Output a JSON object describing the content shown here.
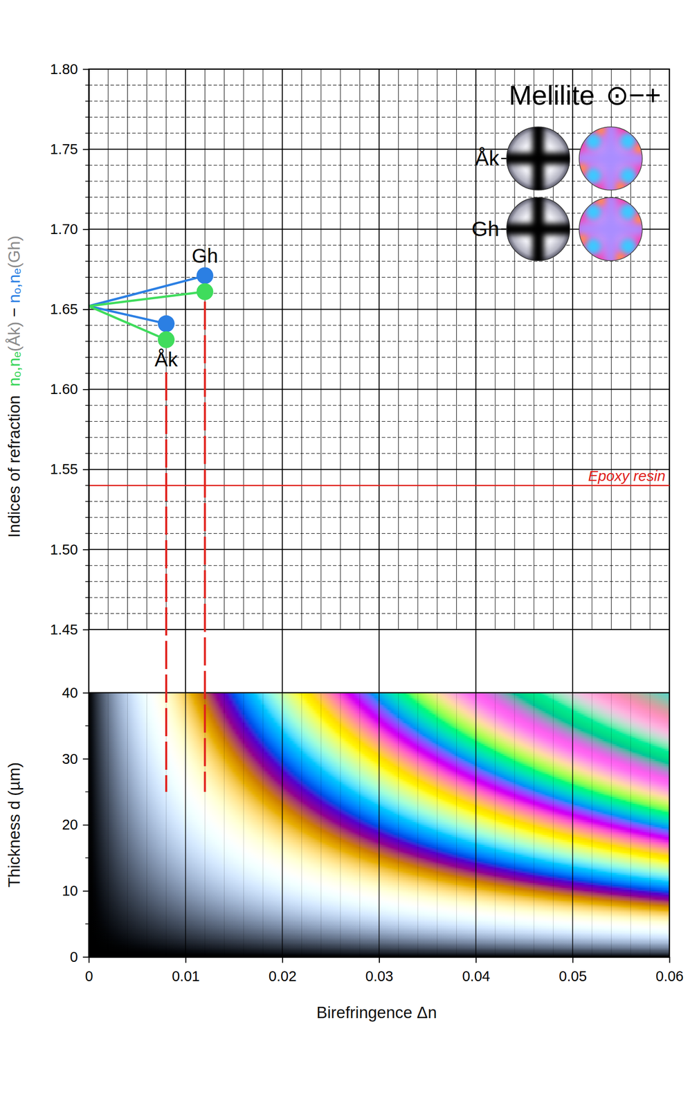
{
  "chart_data": [
    {
      "type": "scatter",
      "title": "Melilite",
      "subtitle": "⊙−+",
      "ylabel": "Indices of refraction",
      "ylabel_parts": [
        {
          "text": "nₒ,nₑ",
          "color": "#35d456"
        },
        {
          "text": "(Åk)",
          "color": "#8a8a8a"
        },
        {
          "text": " − ",
          "color": "#111111"
        },
        {
          "text": "nₒ,nₑ",
          "color": "#2b7fe3"
        },
        {
          "text": "(Gh)",
          "color": "#8a8a8a"
        }
      ],
      "xlim": [
        0,
        0.06
      ],
      "ylim": [
        1.45,
        1.8
      ],
      "xticks": [
        0,
        0.01,
        0.02,
        0.03,
        0.04,
        0.05,
        0.06
      ],
      "x_minor_ticks": [
        0.002,
        0.004,
        0.006,
        0.008,
        0.012,
        0.014,
        0.016,
        0.018,
        0.022,
        0.024,
        0.026,
        0.028,
        0.032,
        0.034,
        0.036,
        0.038,
        0.042,
        0.044,
        0.046,
        0.048,
        0.052,
        0.054,
        0.056,
        0.058
      ],
      "yticks": [
        {
          "value": 1.45,
          "label": "1.45"
        },
        {
          "value": 1.5,
          "label": "1.50"
        },
        {
          "value": 1.55,
          "label": "1.55"
        },
        {
          "value": 1.6,
          "label": "1.60"
        },
        {
          "value": 1.65,
          "label": "1.65"
        },
        {
          "value": 1.7,
          "label": "1.70"
        },
        {
          "value": 1.75,
          "label": "1.75"
        },
        {
          "value": 1.8,
          "label": "1.80"
        }
      ],
      "y_minor_ticks": [
        1.46,
        1.47,
        1.48,
        1.49,
        1.51,
        1.52,
        1.53,
        1.54,
        1.56,
        1.57,
        1.58,
        1.59,
        1.61,
        1.62,
        1.63,
        1.64,
        1.66,
        1.67,
        1.68,
        1.69,
        1.71,
        1.72,
        1.73,
        1.74,
        1.76,
        1.77,
        1.78,
        1.79
      ],
      "grid": true,
      "tick_labels": "y",
      "origin": {
        "x": 0,
        "y": 1.652
      },
      "series": [
        {
          "name": "Åk",
          "x": 0.008,
          "values": [
            1.641,
            1.631
          ],
          "colors": [
            "#2b7fe3",
            "#3fdc5c"
          ]
        },
        {
          "name": "Gh",
          "x": 0.012,
          "values": [
            1.671,
            1.661
          ],
          "colors": [
            "#2b7fe3",
            "#3fdc5c"
          ]
        }
      ],
      "annotations": [
        {
          "text": "Epoxy resin",
          "y": 1.54,
          "color": "#e0201b"
        }
      ],
      "interference_figures": [
        {
          "label": "Åk"
        },
        {
          "label": "Gh"
        }
      ]
    },
    {
      "type": "interference",
      "xlabel": "Birefringence  Δn",
      "ylabel": "Thickness  d (µm)",
      "xlim": [
        0,
        0.06
      ],
      "ylim": [
        0,
        40
      ],
      "xticks": [
        0,
        0.01,
        0.02,
        0.03,
        0.04,
        0.05,
        0.06
      ],
      "x_minor_ticks": [
        0.002,
        0.004,
        0.006,
        0.008,
        0.012,
        0.014,
        0.016,
        0.018,
        0.022,
        0.024,
        0.026,
        0.028,
        0.032,
        0.034,
        0.036,
        0.038,
        0.042,
        0.044,
        0.046,
        0.048,
        0.052,
        0.054,
        0.056,
        0.058
      ],
      "yticks": [
        0,
        10,
        20,
        30,
        40
      ],
      "y_minor_ticks": [
        5,
        15,
        25,
        35
      ],
      "guides": [
        {
          "x": 0.008,
          "y": 25
        },
        {
          "x": 0.012,
          "y": 25
        }
      ],
      "color": "#e0201b"
    }
  ]
}
